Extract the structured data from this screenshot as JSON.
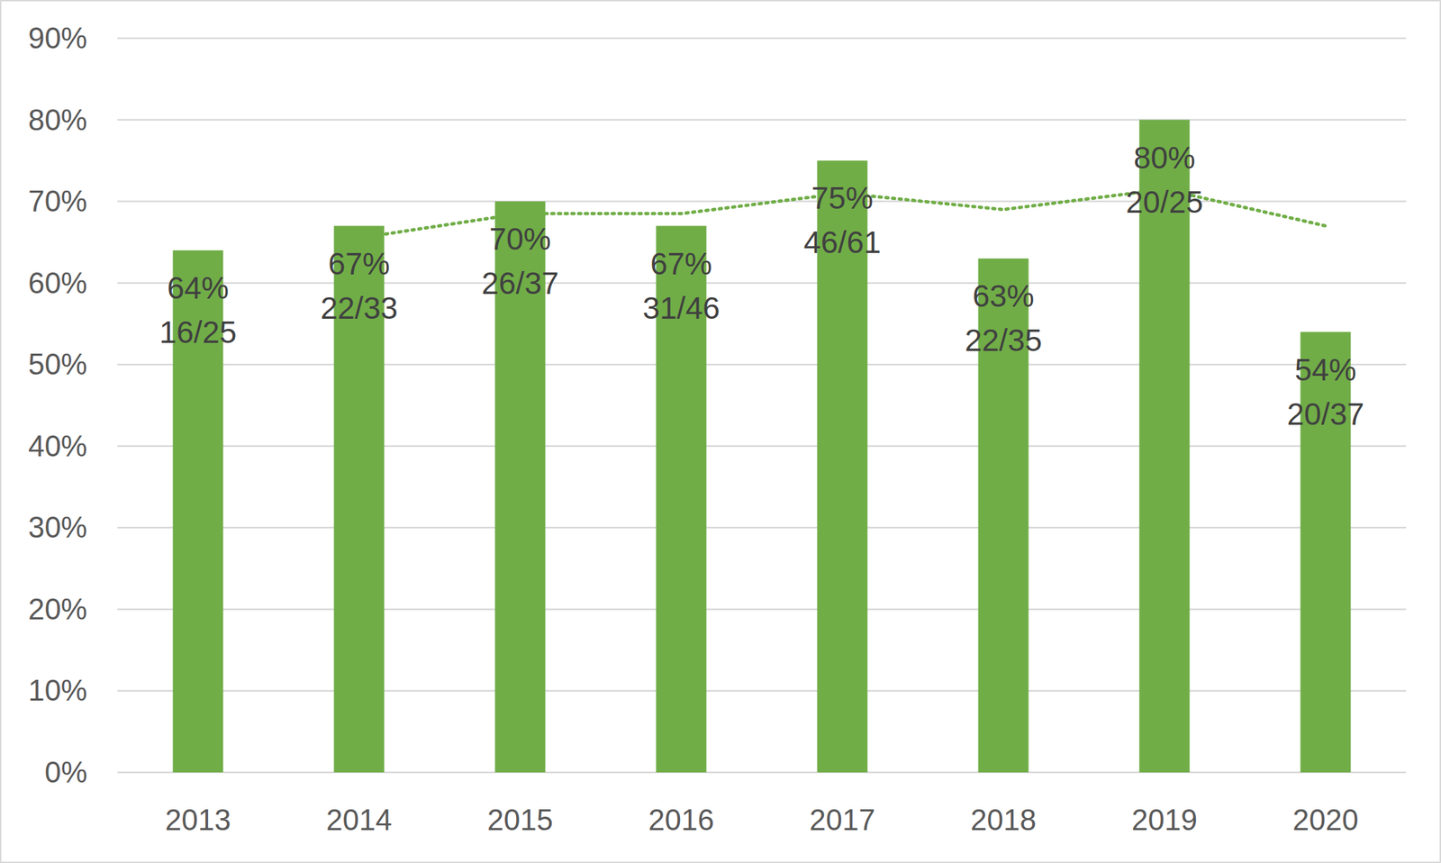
{
  "chart_data": {
    "type": "bar",
    "categories": [
      "2013",
      "2014",
      "2015",
      "2016",
      "2017",
      "2018",
      "2019",
      "2020"
    ],
    "series": [
      {
        "type": "bar",
        "color": "#70ad47",
        "values": [
          64,
          67,
          70,
          67,
          75,
          63,
          80,
          54
        ],
        "value_labels": [
          "64%",
          "67%",
          "70%",
          "67%",
          "75%",
          "63%",
          "80%",
          "54%"
        ],
        "fractions": [
          "16/25",
          "22/33",
          "26/37",
          "31/46",
          "46/61",
          "22/35",
          "20/25",
          "20/37"
        ]
      },
      {
        "type": "line",
        "color": "#70ad47",
        "line_style": "dotted",
        "values": [
          null,
          65.5,
          68.5,
          68.5,
          71,
          69,
          71.5,
          67
        ]
      }
    ],
    "ylim": [
      0,
      90
    ],
    "yticks": [
      {
        "value": 0,
        "label": "0%"
      },
      {
        "value": 10,
        "label": "10%"
      },
      {
        "value": 20,
        "label": "20%"
      },
      {
        "value": 30,
        "label": "30%"
      },
      {
        "value": 40,
        "label": "40%"
      },
      {
        "value": 50,
        "label": "50%"
      },
      {
        "value": 60,
        "label": "60%"
      },
      {
        "value": 70,
        "label": "70%"
      },
      {
        "value": 80,
        "label": "80%"
      },
      {
        "value": 90,
        "label": "90%"
      }
    ],
    "grid": true,
    "data_labels": true
  }
}
